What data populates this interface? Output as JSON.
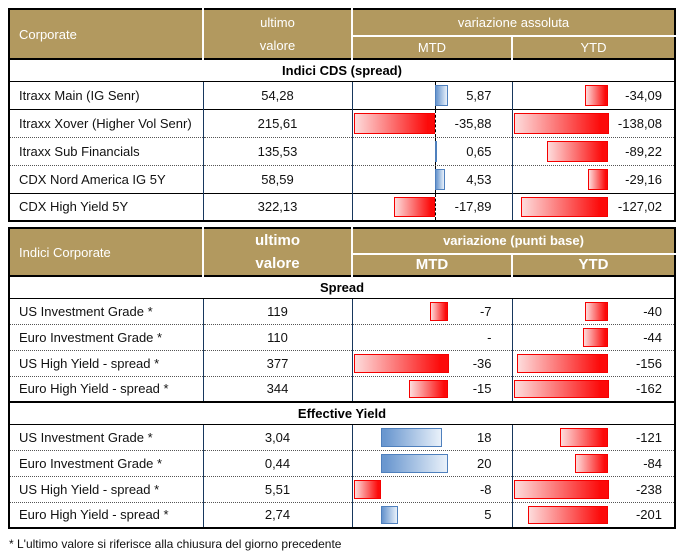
{
  "colors": {
    "header_bg": "#B2995F",
    "header_text": "#FFFFFF",
    "grid_navy": "#17375D",
    "bar_negative": "#FF0000",
    "bar_negative_light": "#FDDCDC",
    "bar_positive": "#6A97CF",
    "bar_positive_border": "#4F80BD"
  },
  "table1": {
    "corner_label": "Corporate",
    "ultimo_label": "ultimo",
    "valore_label": "valore",
    "group_header": "variazione assoluta",
    "mtd_label": "MTD",
    "ytd_label": "YTD",
    "section": "Indici CDS (spread)",
    "scales": {
      "mtd": {
        "min": -35.88,
        "max": 5.87,
        "axis_line": true
      },
      "ytd": {
        "min": -138.08,
        "max": 0
      }
    },
    "rows": [
      {
        "label": "Itraxx Main  (IG Senr)",
        "value": "54,28",
        "mtd": "5,87",
        "ytd": "-34,09"
      },
      {
        "label": "Itraxx Xover (Higher Vol Senr)",
        "value": "215,61",
        "mtd": "-35,88",
        "ytd": "-138,08"
      },
      {
        "label": "Itraxx Sub Financials",
        "value": "135,53",
        "mtd": "0,65",
        "ytd": "-89,22"
      },
      {
        "label": "CDX Nord America IG 5Y",
        "value": "58,59",
        "mtd": "4,53",
        "ytd": "-29,16"
      },
      {
        "label": "CDX High Yield 5Y",
        "value": "322,13",
        "mtd": "-17,89",
        "ytd": "-127,02"
      }
    ]
  },
  "table2": {
    "corner_label": "Indici Corporate",
    "ultimo_label": "ultimo",
    "valore_label": "valore",
    "group_header": "variazione (punti base)",
    "mtd_label": "MTD",
    "ytd_label": "YTD",
    "sections": [
      {
        "title": "Spread",
        "scales": {
          "mtd": {
            "min": -36,
            "max": 0
          },
          "ytd": {
            "min": -162,
            "max": 0
          }
        },
        "rows": [
          {
            "label": "US Investment Grade *",
            "value": "119",
            "mtd": "-7",
            "ytd": "-40"
          },
          {
            "label": "Euro Investment Grade *",
            "value": "110",
            "mtd": "-",
            "ytd": "-44"
          },
          {
            "label": "US High Yield  - spread *",
            "value": "377",
            "mtd": "-36",
            "ytd": "-156"
          },
          {
            "label": "Euro High Yield  - spread *",
            "value": "344",
            "mtd": "-15",
            "ytd": "-162"
          }
        ]
      },
      {
        "title": "Effective Yield",
        "scales": {
          "mtd": {
            "min": -8,
            "max": 20
          },
          "ytd": {
            "min": -238,
            "max": 0
          }
        },
        "rows": [
          {
            "label": "US Investment Grade *",
            "value": "3,04",
            "mtd": "18",
            "ytd": "-121"
          },
          {
            "label": "Euro Investment Grade *",
            "value": "0,44",
            "mtd": "20",
            "ytd": "-84"
          },
          {
            "label": "US High Yield  - spread *",
            "value": "5,51",
            "mtd": "-8",
            "ytd": "-238"
          },
          {
            "label": "Euro High Yield  - spread *",
            "value": "2,74",
            "mtd": "5",
            "ytd": "-201"
          }
        ]
      }
    ]
  },
  "footnote": "* L'ultimo valore si riferisce alla chiusura del giorno precedente",
  "chart_data": [
    {
      "type": "table",
      "title": "Corporate — Indici CDS (spread)",
      "columns": [
        "ultimo valore",
        "variazione assoluta MTD",
        "variazione assoluta YTD"
      ],
      "categories": [
        "Itraxx Main (IG Senr)",
        "Itraxx Xover (Higher Vol Senr)",
        "Itraxx Sub Financials",
        "CDX Nord America IG 5Y",
        "CDX High Yield 5Y"
      ],
      "series": [
        {
          "name": "ultimo valore",
          "values": [
            54.28,
            215.61,
            135.53,
            58.59,
            322.13
          ]
        },
        {
          "name": "MTD",
          "values": [
            5.87,
            -35.88,
            0.65,
            4.53,
            -17.89
          ]
        },
        {
          "name": "YTD",
          "values": [
            -34.09,
            -138.08,
            -89.22,
            -29.16,
            -127.02
          ]
        }
      ],
      "bar_style": "excel-data-bars, red negative / blue positive, dashed zero axis in MTD"
    },
    {
      "type": "table",
      "title": "Indici Corporate — Spread",
      "columns": [
        "ultimo valore",
        "variazione (punti base) MTD",
        "variazione (punti base) YTD"
      ],
      "categories": [
        "US Investment Grade *",
        "Euro Investment Grade *",
        "US High Yield - spread *",
        "Euro High Yield - spread *"
      ],
      "series": [
        {
          "name": "ultimo valore",
          "values": [
            119,
            110,
            377,
            344
          ]
        },
        {
          "name": "MTD",
          "values": [
            -7,
            null,
            -36,
            -15
          ]
        },
        {
          "name": "YTD",
          "values": [
            -40,
            -44,
            -156,
            -162
          ]
        }
      ]
    },
    {
      "type": "table",
      "title": "Indici Corporate — Effective Yield",
      "columns": [
        "ultimo valore",
        "variazione (punti base) MTD",
        "variazione (punti base) YTD"
      ],
      "categories": [
        "US Investment Grade *",
        "Euro Investment Grade *",
        "US High Yield - spread *",
        "Euro High Yield - spread *"
      ],
      "series": [
        {
          "name": "ultimo valore",
          "values": [
            3.04,
            0.44,
            5.51,
            2.74
          ]
        },
        {
          "name": "MTD",
          "values": [
            18,
            20,
            -8,
            5
          ]
        },
        {
          "name": "YTD",
          "values": [
            -121,
            -84,
            -238,
            -201
          ]
        }
      ]
    }
  ]
}
